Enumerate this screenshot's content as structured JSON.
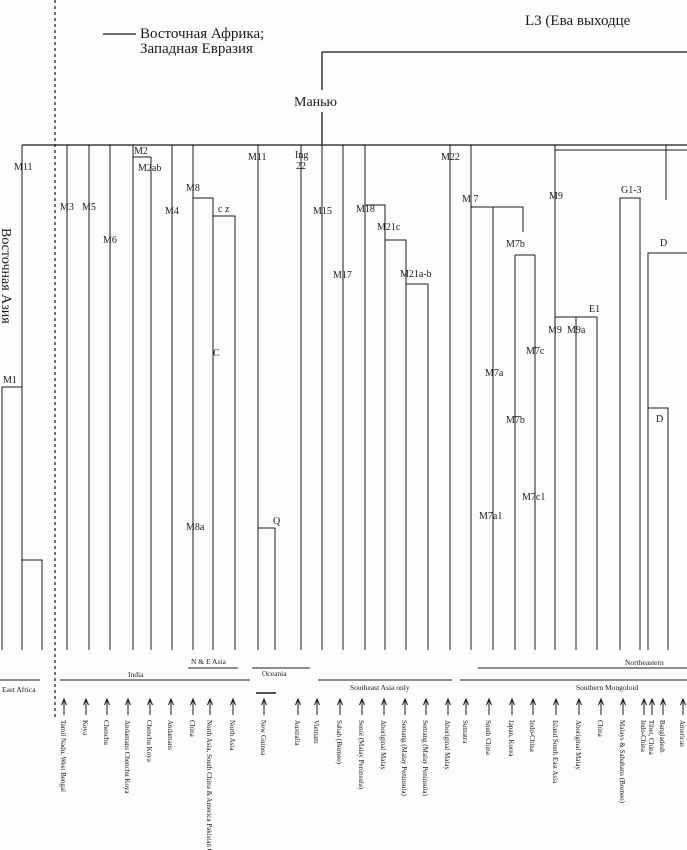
{
  "header": {
    "legend_line1": "Восточная Африка;",
    "legend_line2": "Западная Евразия",
    "l3_label": "L3 (Ева выходце",
    "root_label": "Манью"
  },
  "side_label": "Восточная Азия",
  "haplogroups": {
    "m11_left": "M11",
    "m1": "M1",
    "m3": "M3",
    "m5": "M5",
    "m6": "M6",
    "m2": "M2",
    "m2ab": "M2ab",
    "m4": "M4",
    "m8": "M8",
    "cz": "c z",
    "c": "C",
    "m8a": "M8a",
    "m11_mid": "M11",
    "ing22": "Ing\n22",
    "q": "Q",
    "m15": "M15",
    "m17": "M17",
    "m18": "M18",
    "m21c": "M21c",
    "m21ab": "M21a-b",
    "m22": "M22",
    "m7_top": "M 7",
    "m7b_top": "M7b",
    "m7a": "M7a",
    "m7b_mid": "M7b",
    "m7c": "M7c",
    "m7a1": "M7a1",
    "m7c1": "M7c1",
    "m9_top": "M9",
    "m9": "M9",
    "m9a": "M9a",
    "e1": "E1",
    "g13": "G1-3",
    "d_top": "D",
    "d_mid": "D"
  },
  "regions": {
    "east_africa": "East Africa",
    "india": "India",
    "ne_asia": "N & E Asia",
    "oceania": "Oceania",
    "se_asia": "Southeast Asia only",
    "northeast": "Northeastern",
    "southern_mong": "Southern Mongoloid"
  },
  "populations": [
    "Tamil Nadu, West Bengal",
    "Koya",
    "Chenchu",
    "Andamans Chenchu Koya",
    "Chenchu Koya",
    "Andamans",
    "China",
    "North Asia, South China & America Pakistan Gujarat",
    "North Asia",
    "New Guinea",
    "Australia",
    "Vietnam",
    "Sabah (Borneo)",
    "Senoi (Malay Peninsula)",
    "Aboriginal Malay",
    "Semang (Malay Peninsula)",
    "Semang (Malay Peninsula)",
    "Aboriginal Malay",
    "Sumatra",
    "South China",
    "Japan, Korea",
    "Indo-China",
    "Island South East Asia",
    "Aboriginal Malay",
    "China",
    "Malays & Sabahans (Borneo)",
    "Indo-China",
    "Tibet, China",
    "Bangladesh",
    "Americas"
  ]
}
